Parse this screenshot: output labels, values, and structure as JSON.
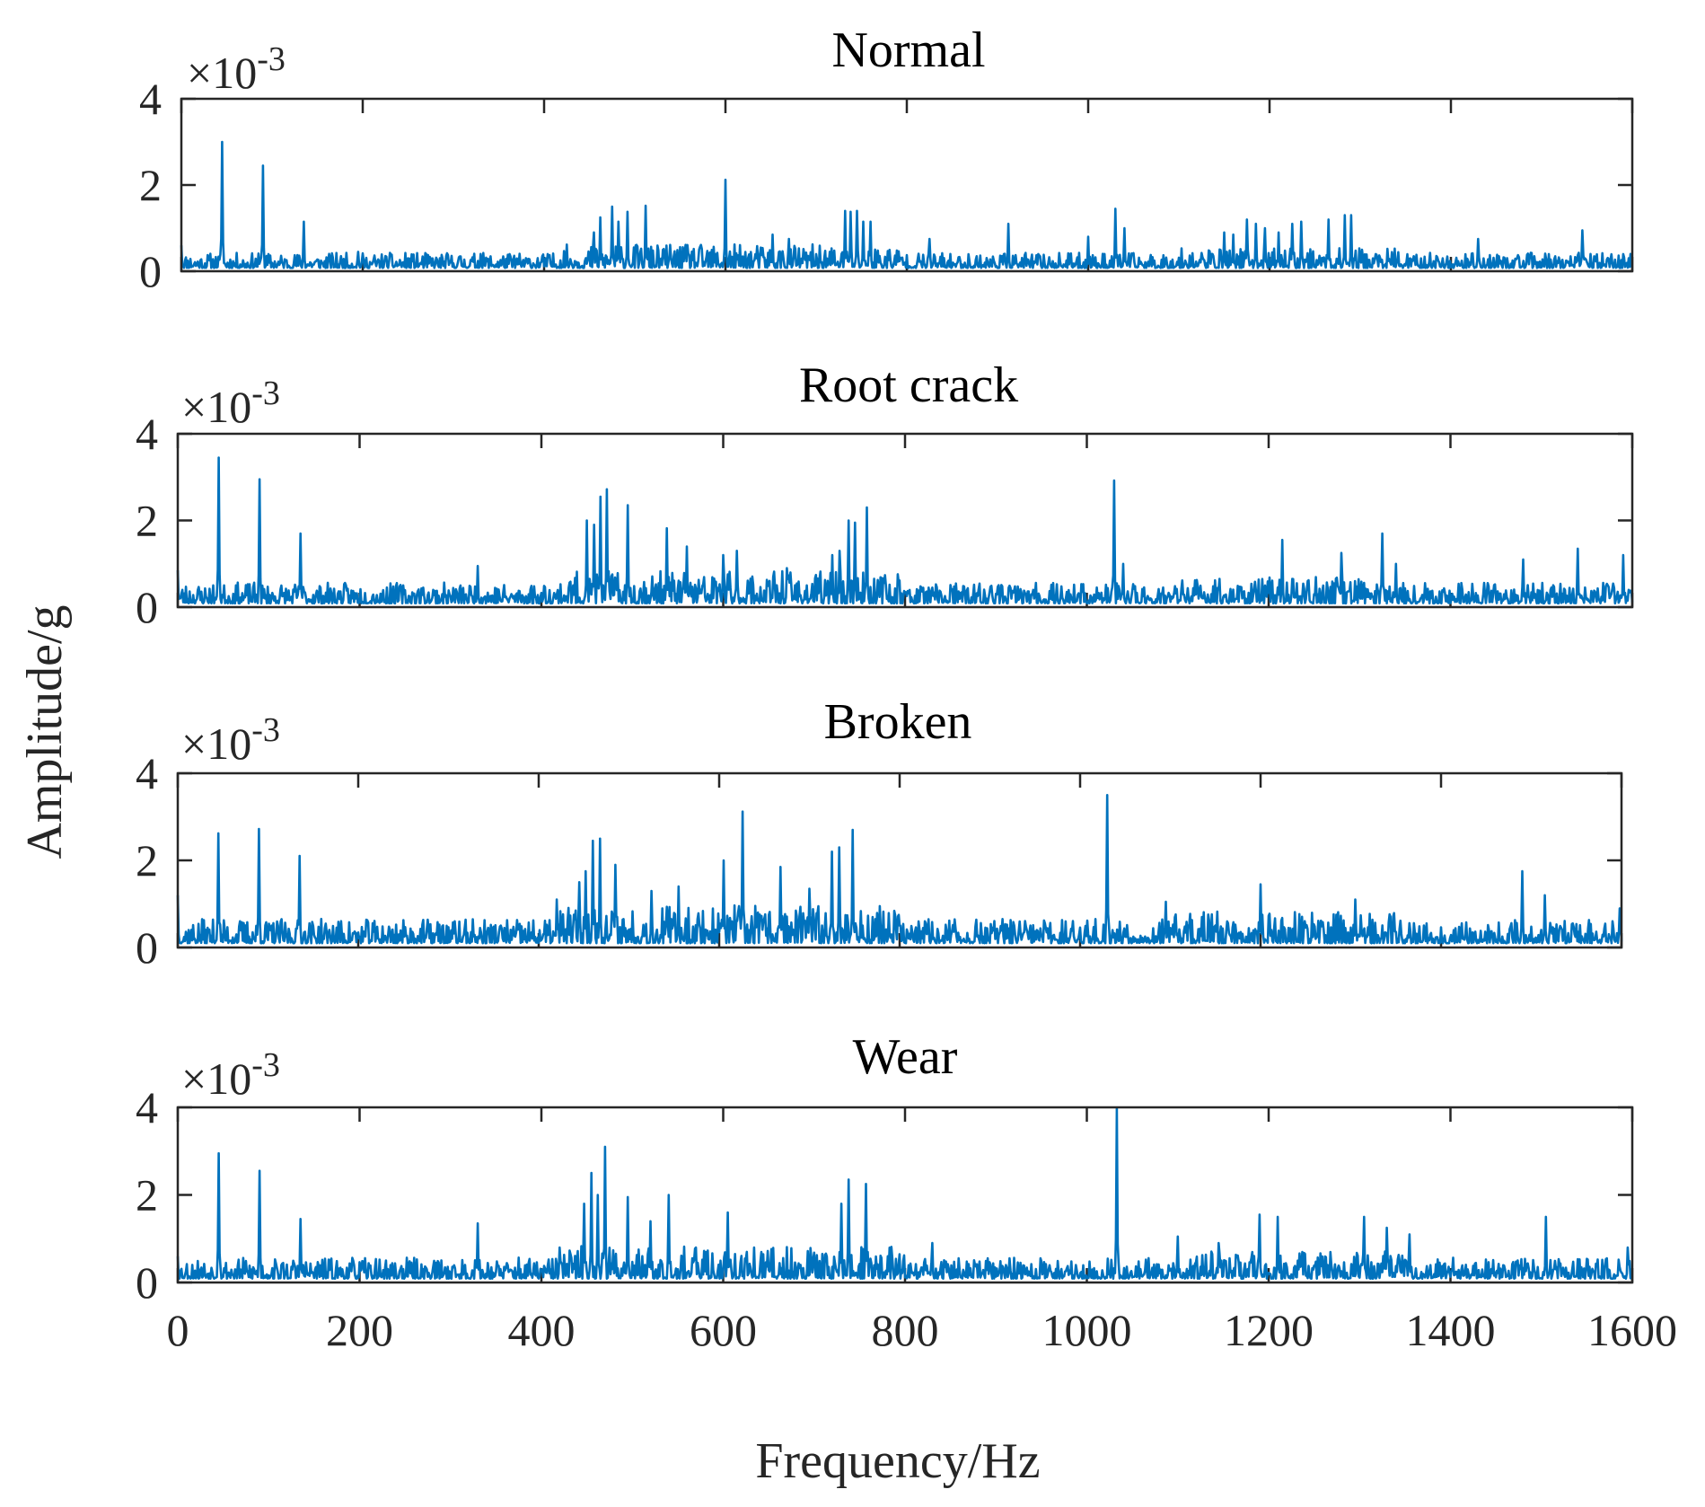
{
  "chart_data": {
    "type": "line",
    "figure": {
      "ylabel": "Amplitude/g",
      "xlabel": "Frequency/Hz",
      "line_color": "#0072BD"
    },
    "panels": [
      {
        "title": "Normal",
        "exponent_label": "×10",
        "exponent": "-3",
        "xlim": [
          0,
          1600
        ],
        "ylim": [
          0,
          4
        ],
        "yticks": [
          "0",
          "2",
          "4"
        ],
        "xticks": [],
        "baseline": 0.22,
        "noise": 0.22,
        "seed": 11,
        "peaks": [
          [
            0,
            0.6
          ],
          [
            45,
            3.0
          ],
          [
            90,
            2.45
          ],
          [
            135,
            1.15
          ],
          [
            195,
            0.45
          ],
          [
            330,
            0.4
          ],
          [
            455,
            0.9
          ],
          [
            462,
            1.25
          ],
          [
            475,
            1.5
          ],
          [
            482,
            1.15
          ],
          [
            492,
            1.38
          ],
          [
            512,
            1.52
          ],
          [
            600,
            2.12
          ],
          [
            652,
            0.85
          ],
          [
            670,
            0.75
          ],
          [
            732,
            1.4
          ],
          [
            738,
            1.38
          ],
          [
            745,
            1.4
          ],
          [
            752,
            1.15
          ],
          [
            760,
            1.15
          ],
          [
            825,
            0.75
          ],
          [
            912,
            1.1
          ],
          [
            1000,
            0.8
          ],
          [
            1030,
            1.45
          ],
          [
            1040,
            1.0
          ],
          [
            1150,
            0.9
          ],
          [
            1160,
            0.85
          ],
          [
            1175,
            1.2
          ],
          [
            1185,
            1.1
          ],
          [
            1195,
            1.0
          ],
          [
            1210,
            0.9
          ],
          [
            1225,
            1.1
          ],
          [
            1235,
            1.15
          ],
          [
            1265,
            1.2
          ],
          [
            1283,
            1.3
          ],
          [
            1290,
            1.3
          ],
          [
            1430,
            0.75
          ],
          [
            1545,
            0.95
          ],
          [
            1598,
            0.4
          ]
        ]
      },
      {
        "title": "Root crack",
        "exponent_label": "×10",
        "exponent": "-3",
        "xlim": [
          0,
          1600
        ],
        "ylim": [
          0,
          4
        ],
        "yticks": [
          "0",
          "2",
          "4"
        ],
        "xticks": [],
        "baseline": 0.25,
        "noise": 0.3,
        "seed": 23,
        "peaks": [
          [
            0,
            0.85
          ],
          [
            45,
            3.45
          ],
          [
            90,
            2.95
          ],
          [
            135,
            1.7
          ],
          [
            330,
            0.95
          ],
          [
            450,
            2.0
          ],
          [
            458,
            1.9
          ],
          [
            465,
            2.55
          ],
          [
            472,
            2.72
          ],
          [
            495,
            2.35
          ],
          [
            538,
            1.82
          ],
          [
            560,
            1.4
          ],
          [
            600,
            1.2
          ],
          [
            615,
            1.3
          ],
          [
            670,
            0.9
          ],
          [
            720,
            1.2
          ],
          [
            728,
            1.3
          ],
          [
            738,
            2.0
          ],
          [
            745,
            1.95
          ],
          [
            758,
            2.3
          ],
          [
            1030,
            2.92
          ],
          [
            1040,
            1.0
          ],
          [
            1215,
            1.55
          ],
          [
            1280,
            1.25
          ],
          [
            1325,
            1.7
          ],
          [
            1340,
            1.0
          ],
          [
            1480,
            1.1
          ],
          [
            1540,
            1.35
          ],
          [
            1590,
            1.2
          ]
        ]
      },
      {
        "title": "Broken",
        "exponent_label": "×10",
        "exponent": "-3",
        "xlim": [
          0,
          1600
        ],
        "ylim": [
          0,
          4
        ],
        "yticks": [
          "0",
          "2",
          "4"
        ],
        "xticks": [],
        "baseline": 0.28,
        "noise": 0.35,
        "seed": 37,
        "peaks": [
          [
            0,
            1.2
          ],
          [
            45,
            2.62
          ],
          [
            90,
            2.72
          ],
          [
            135,
            2.1
          ],
          [
            420,
            1.1
          ],
          [
            445,
            1.5
          ],
          [
            452,
            1.75
          ],
          [
            460,
            2.45
          ],
          [
            468,
            2.5
          ],
          [
            485,
            1.9
          ],
          [
            525,
            1.3
          ],
          [
            555,
            1.4
          ],
          [
            605,
            2.0
          ],
          [
            626,
            3.12
          ],
          [
            668,
            1.85
          ],
          [
            700,
            1.35
          ],
          [
            725,
            2.2
          ],
          [
            733,
            2.3
          ],
          [
            748,
            2.7
          ],
          [
            1030,
            3.5
          ],
          [
            1095,
            1.05
          ],
          [
            1200,
            1.45
          ],
          [
            1305,
            1.1
          ],
          [
            1490,
            1.75
          ],
          [
            1515,
            1.2
          ],
          [
            1598,
            0.9
          ]
        ]
      },
      {
        "title": "Wear",
        "exponent_label": "×10",
        "exponent": "-3",
        "xlim": [
          0,
          1600
        ],
        "ylim": [
          0,
          4
        ],
        "yticks": [
          "0",
          "2",
          "4"
        ],
        "xticks": [
          "0",
          "200",
          "400",
          "600",
          "800",
          "1000",
          "1200",
          "1400",
          "1600"
        ],
        "baseline": 0.25,
        "noise": 0.3,
        "seed": 53,
        "peaks": [
          [
            0,
            0.6
          ],
          [
            45,
            2.95
          ],
          [
            90,
            2.55
          ],
          [
            135,
            1.45
          ],
          [
            330,
            1.35
          ],
          [
            420,
            0.8
          ],
          [
            447,
            1.8
          ],
          [
            455,
            2.5
          ],
          [
            462,
            2.0
          ],
          [
            470,
            3.1
          ],
          [
            495,
            1.95
          ],
          [
            520,
            1.4
          ],
          [
            540,
            2.0
          ],
          [
            605,
            1.6
          ],
          [
            730,
            1.8
          ],
          [
            738,
            2.35
          ],
          [
            757,
            2.25
          ],
          [
            830,
            0.9
          ],
          [
            1033,
            3.98
          ],
          [
            1100,
            1.05
          ],
          [
            1145,
            0.9
          ],
          [
            1190,
            1.55
          ],
          [
            1210,
            1.5
          ],
          [
            1305,
            1.5
          ],
          [
            1330,
            1.25
          ],
          [
            1355,
            1.1
          ],
          [
            1505,
            1.5
          ],
          [
            1595,
            0.8
          ]
        ]
      }
    ]
  }
}
